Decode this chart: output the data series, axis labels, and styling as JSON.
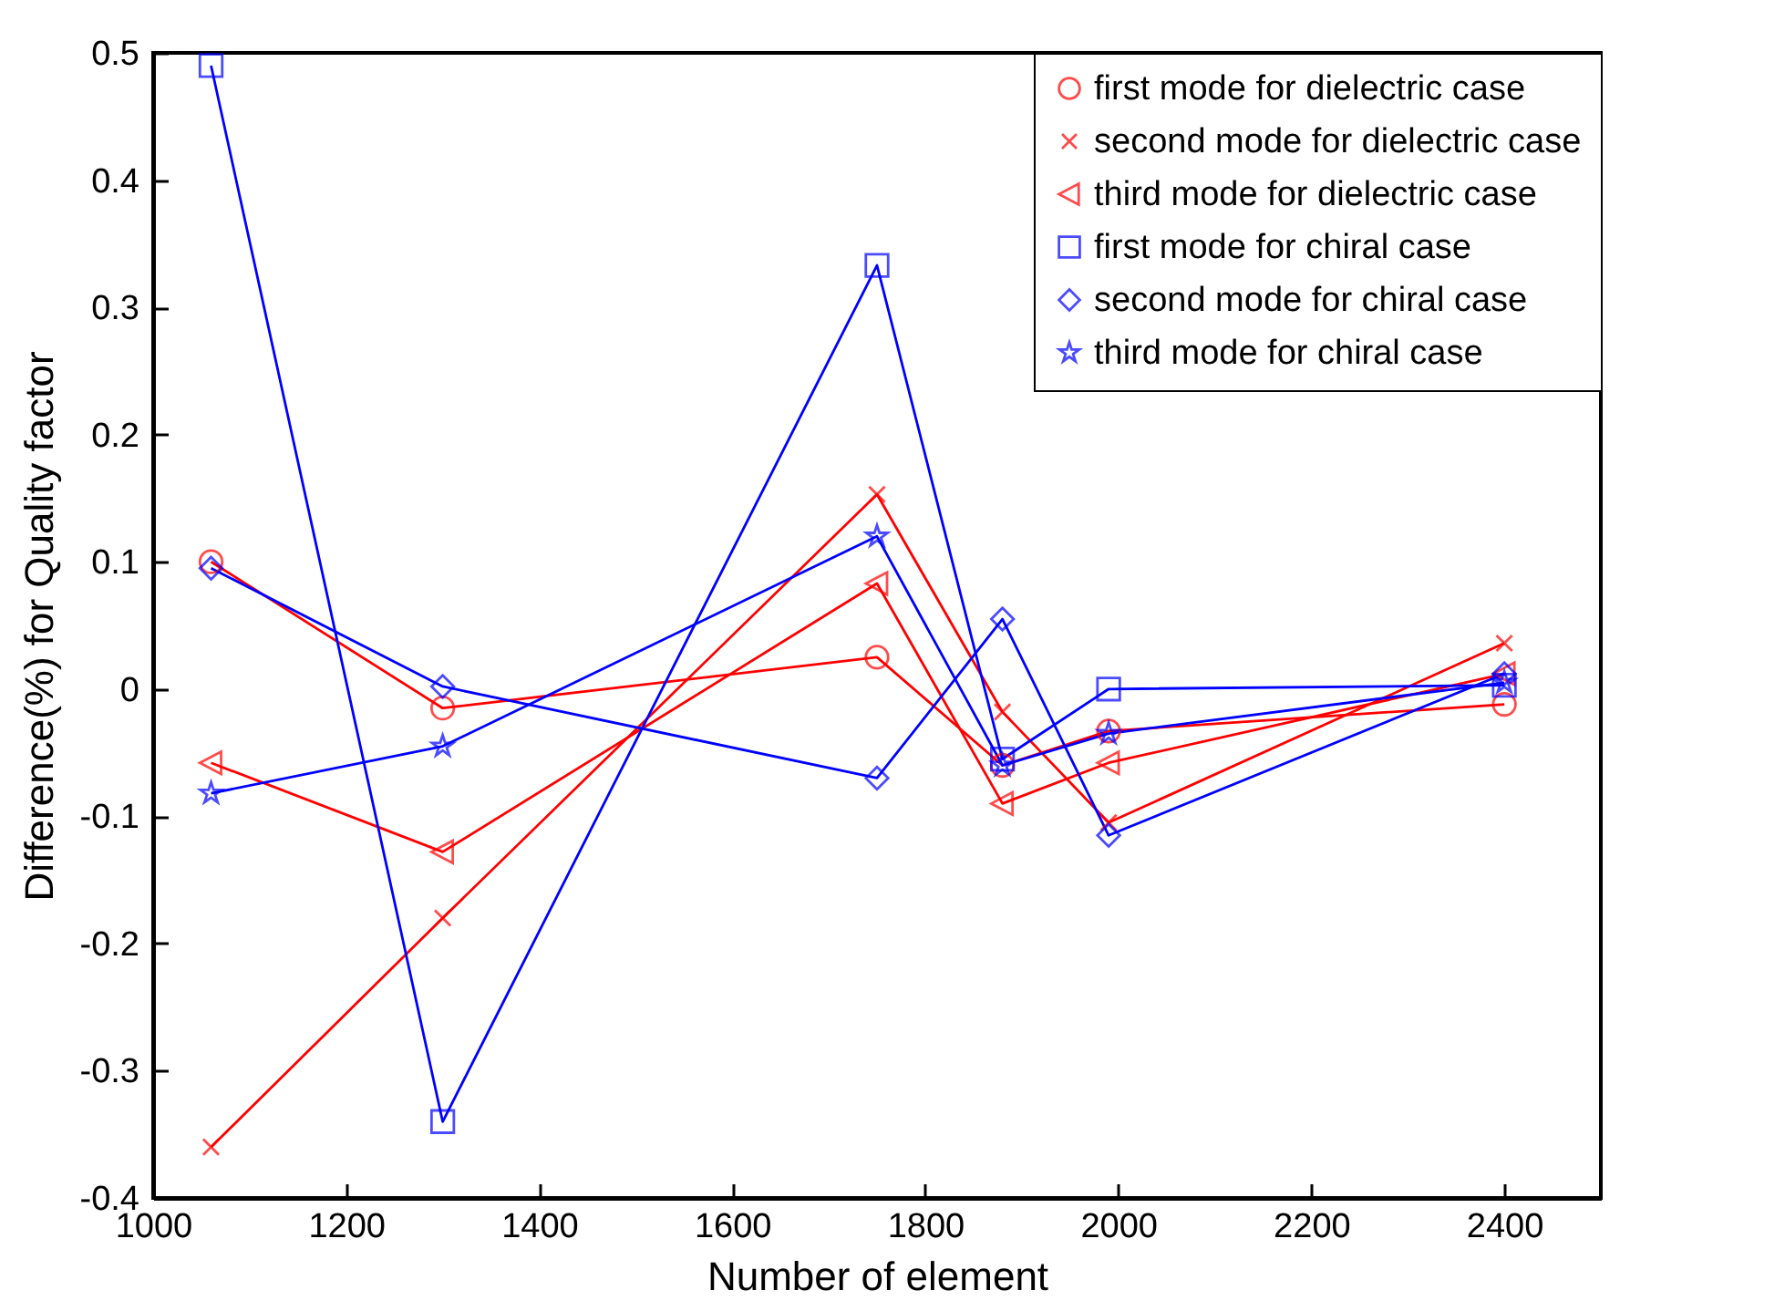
{
  "chart_data": {
    "type": "line",
    "xlabel": "Number of element",
    "ylabel": "Difference(%) for Quality factor",
    "x": [
      1060,
      1300,
      1750,
      1880,
      1990,
      2400
    ],
    "series": [
      {
        "name": "first mode for dielectric case",
        "color": "#ff0000",
        "marker": "circle",
        "values": [
          0.1,
          -0.015,
          0.025,
          -0.06,
          -0.033,
          -0.012
        ]
      },
      {
        "name": "second mode for dielectric case",
        "color": "#ff0000",
        "marker": "cross",
        "values": [
          -0.36,
          -0.18,
          0.153,
          -0.018,
          -0.105,
          0.036
        ]
      },
      {
        "name": "third mode for dielectric case",
        "color": "#ff0000",
        "marker": "triangle",
        "values": [
          -0.058,
          -0.128,
          0.083,
          -0.09,
          -0.058,
          0.012
        ]
      },
      {
        "name": "first mode for chiral case",
        "color": "#0000ff",
        "marker": "square",
        "values": [
          0.49,
          -0.34,
          0.333,
          -0.055,
          0.0,
          0.003
        ]
      },
      {
        "name": "second mode for chiral case",
        "color": "#0000ff",
        "marker": "diamond",
        "values": [
          0.095,
          0.002,
          -0.07,
          0.055,
          -0.115,
          0.012
        ]
      },
      {
        "name": "third mode for chiral case",
        "color": "#0000ff",
        "marker": "star",
        "values": [
          -0.082,
          -0.045,
          0.12,
          -0.06,
          -0.035,
          0.005
        ]
      }
    ],
    "xlim": [
      1000,
      2500
    ],
    "xticks": [
      1000,
      1200,
      1400,
      1600,
      1800,
      2000,
      2200,
      2400
    ],
    "ylim": [
      -0.4,
      0.5
    ],
    "yticks": [
      -0.4,
      -0.3,
      -0.2,
      -0.1,
      0,
      0.1,
      0.2,
      0.3,
      0.4,
      0.5
    ],
    "grid": false,
    "legend": "top right",
    "line_style": "solid"
  }
}
